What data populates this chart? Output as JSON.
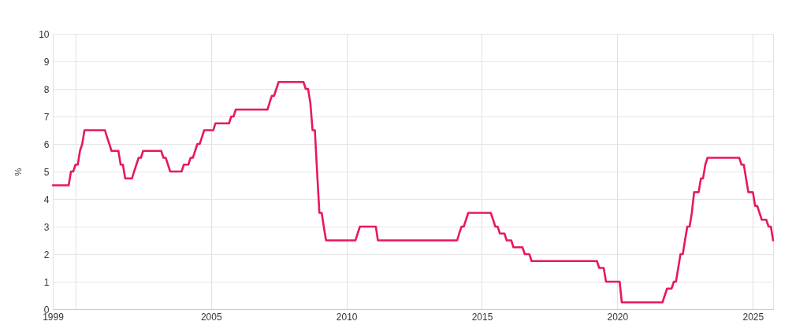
{
  "chart_data": {
    "type": "line",
    "ylabel": "%",
    "x": [
      "1999-03",
      "1999-10",
      "1999-11",
      "1999-12",
      "2000-01",
      "2000-02",
      "2000-03",
      "2000-04",
      "2000-05",
      "2001-02",
      "2001-03",
      "2001-04",
      "2001-05",
      "2001-08",
      "2001-09",
      "2001-10",
      "2001-11",
      "2002-02",
      "2002-03",
      "2002-04",
      "2002-05",
      "2002-06",
      "2002-07",
      "2003-03",
      "2003-04",
      "2003-05",
      "2003-06",
      "2003-07",
      "2003-12",
      "2004-01",
      "2004-03",
      "2004-04",
      "2004-05",
      "2004-06",
      "2004-07",
      "2004-08",
      "2004-09",
      "2004-10",
      "2005-02",
      "2005-03",
      "2005-09",
      "2005-10",
      "2005-11",
      "2005-12",
      "2007-02",
      "2007-03",
      "2007-04",
      "2007-05",
      "2007-06",
      "2007-07",
      "2008-06",
      "2008-07",
      "2008-08",
      "2008-09",
      "2008-10",
      "2008-11",
      "2008-12",
      "2009-01",
      "2009-02",
      "2009-03",
      "2009-04",
      "2010-05",
      "2010-06",
      "2010-07",
      "2011-02",
      "2011-03",
      "2014-02",
      "2014-03",
      "2014-04",
      "2014-05",
      "2014-06",
      "2014-07",
      "2015-05",
      "2015-06",
      "2015-07",
      "2015-08",
      "2015-09",
      "2015-11",
      "2015-12",
      "2016-02",
      "2016-03",
      "2016-07",
      "2016-08",
      "2016-10",
      "2016-11",
      "2019-04",
      "2019-05",
      "2019-07",
      "2019-08",
      "2020-02",
      "2020-03",
      "2021-09",
      "2021-10",
      "2021-11",
      "2022-01",
      "2022-02",
      "2022-03",
      "2022-04",
      "2022-05",
      "2022-06",
      "2022-07",
      "2022-08",
      "2022-09",
      "2022-10",
      "2022-11",
      "2023-01",
      "2023-02",
      "2023-03",
      "2023-04",
      "2023-05",
      "2024-07",
      "2024-08",
      "2024-09",
      "2024-10",
      "2024-11",
      "2025-01",
      "2025-02",
      "2025-03",
      "2025-04",
      "2025-05",
      "2025-07",
      "2025-08",
      "2025-09",
      "2025-10"
    ],
    "series": [
      {
        "color": "#e8185e",
        "values": [
          4.5,
          4.5,
          5.0,
          5.0,
          5.25,
          5.25,
          5.75,
          6.0,
          6.5,
          6.5,
          6.25,
          6.0,
          5.75,
          5.75,
          5.25,
          5.25,
          4.75,
          4.75,
          5.0,
          5.25,
          5.5,
          5.5,
          5.75,
          5.75,
          5.5,
          5.5,
          5.25,
          5.0,
          5.0,
          5.25,
          5.25,
          5.5,
          5.5,
          5.75,
          6.0,
          6.0,
          6.25,
          6.5,
          6.5,
          6.75,
          6.75,
          7.0,
          7.0,
          7.25,
          7.25,
          7.5,
          7.75,
          7.75,
          8.0,
          8.25,
          8.25,
          8.0,
          8.0,
          7.5,
          6.5,
          6.5,
          5.0,
          3.5,
          3.5,
          3.0,
          2.5,
          2.5,
          2.75,
          3.0,
          3.0,
          2.5,
          2.5,
          2.75,
          3.0,
          3.0,
          3.25,
          3.5,
          3.5,
          3.25,
          3.0,
          3.0,
          2.75,
          2.75,
          2.5,
          2.5,
          2.25,
          2.25,
          2.0,
          2.0,
          1.75,
          1.75,
          1.5,
          1.5,
          1.0,
          1.0,
          0.25,
          0.25,
          0.5,
          0.75,
          0.75,
          1.0,
          1.0,
          1.5,
          2.0,
          2.0,
          2.5,
          3.0,
          3.0,
          3.5,
          4.25,
          4.25,
          4.75,
          4.75,
          5.25,
          5.5,
          5.5,
          5.25,
          5.25,
          4.75,
          4.25,
          4.25,
          3.75,
          3.75,
          3.5,
          3.25,
          3.25,
          3.0,
          3.0,
          2.5
        ]
      }
    ],
    "xlim": [
      "1999-03",
      "2025-10"
    ],
    "ylim": [
      0,
      10
    ],
    "xticks": [
      {
        "value": "1999-03",
        "label": "1999"
      },
      {
        "value": "2000",
        "label": null
      },
      "2005",
      "2010",
      "2015",
      "2020",
      "2025"
    ],
    "yticks": [
      0,
      1,
      2,
      3,
      4,
      5,
      6,
      7,
      8,
      9,
      10
    ],
    "grid": true
  }
}
